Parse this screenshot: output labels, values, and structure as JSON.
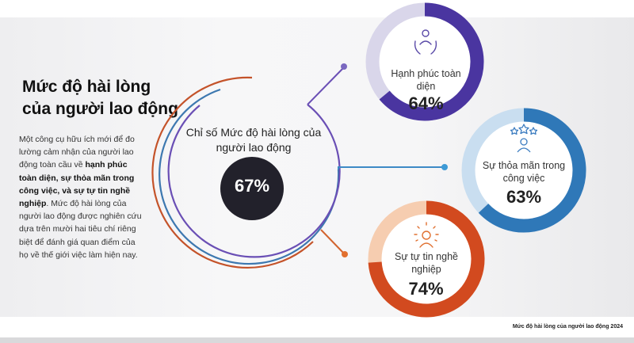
{
  "title_line1": "Mức độ hài lòng",
  "title_line2": "của người lao động",
  "description": {
    "intro": "Một công cụ hữu ích mới để đo lường cảm nhận của người lao động toàn cầu về ",
    "bold": "hạnh phúc toàn diện, sự thỏa mãn trong công việc, và sự tự tin nghề nghiệp",
    "outro": ". Mức độ hài lòng của người lao động được nghiên cứu dựa trên mười hai tiêu chí riêng biệt để đánh giá quan điểm của họ về thế giới việc làm hiện nay."
  },
  "center": {
    "label": "Chỉ số Mức độ hài lòng của người lao động",
    "value": "67%"
  },
  "metrics": [
    {
      "label": "Hạnh phúc toàn diện",
      "value": "64%",
      "fraction": 0.64,
      "icon": "people-care-icon",
      "color": "#4a35a0",
      "track": "#d9d6ea"
    },
    {
      "label": "Sự thỏa mãn trong công việc",
      "value": "63%",
      "fraction": 0.63,
      "icon": "stars-person-icon",
      "color": "#2f78b8",
      "track": "#c9def0"
    },
    {
      "label": "Sự tự tin nghề nghiệp",
      "value": "74%",
      "fraction": 0.74,
      "icon": "sun-person-icon",
      "color": "#d24a1f",
      "track": "#f6cdb0"
    }
  ],
  "footer": "Mức độ hài lòng của người lao động 2024"
}
